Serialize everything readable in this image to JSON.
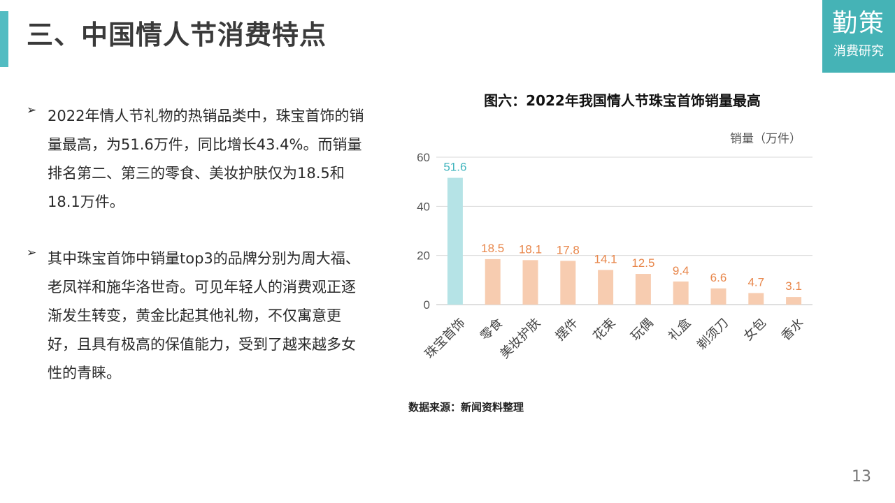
{
  "slide": {
    "title": "三、中国情人节消费特点",
    "page_number": "13"
  },
  "logo": {
    "main": "勤策",
    "sub": "消费研究"
  },
  "bullets": [
    {
      "marker": "➢",
      "text": "2022年情人节礼物的热销品类中，珠宝首饰的销量最高，为51.6万件，同比增长43.4%。而销量排名第二、第三的零食、美妆护肤仅为18.5和18.1万件。"
    },
    {
      "marker": "➢",
      "text": "其中珠宝首饰中销量top3的品牌分别为周大福、老凤祥和施华洛世奇。可见年轻人的消费观正逐渐发生转变，黄金比起其他礼物，不仅寓意更好，且具有极高的保值能力，受到了越来越多女性的青睐。"
    }
  ],
  "chart_data": {
    "type": "bar",
    "title": "图六：2022年我国情人节珠宝首饰销量最高",
    "unit_label": "销量（万件）",
    "categories": [
      "珠宝首饰",
      "零食",
      "美妆护肤",
      "摆件",
      "花束",
      "玩偶",
      "礼盒",
      "剃须刀",
      "女包",
      "香水"
    ],
    "values": [
      51.6,
      18.5,
      18.1,
      17.8,
      14.1,
      12.5,
      9.4,
      6.6,
      4.7,
      3.1
    ],
    "value_labels": [
      "51.6",
      "18.5",
      "18.1",
      "17.8",
      "14.1",
      "12.5",
      "9.4",
      "6.6",
      "4.7",
      "3.1"
    ],
    "ylim": [
      0,
      60
    ],
    "yticks": [
      "0",
      "20",
      "40",
      "60"
    ],
    "grid": true,
    "colors": {
      "highlight_bar": "#b5e3e6",
      "highlight_label": "#3fb4bd",
      "bar": "#f7ccb0",
      "label": "#e8864a",
      "grid": "#d9d9d9"
    }
  },
  "source": "数据来源：新闻资料整理"
}
